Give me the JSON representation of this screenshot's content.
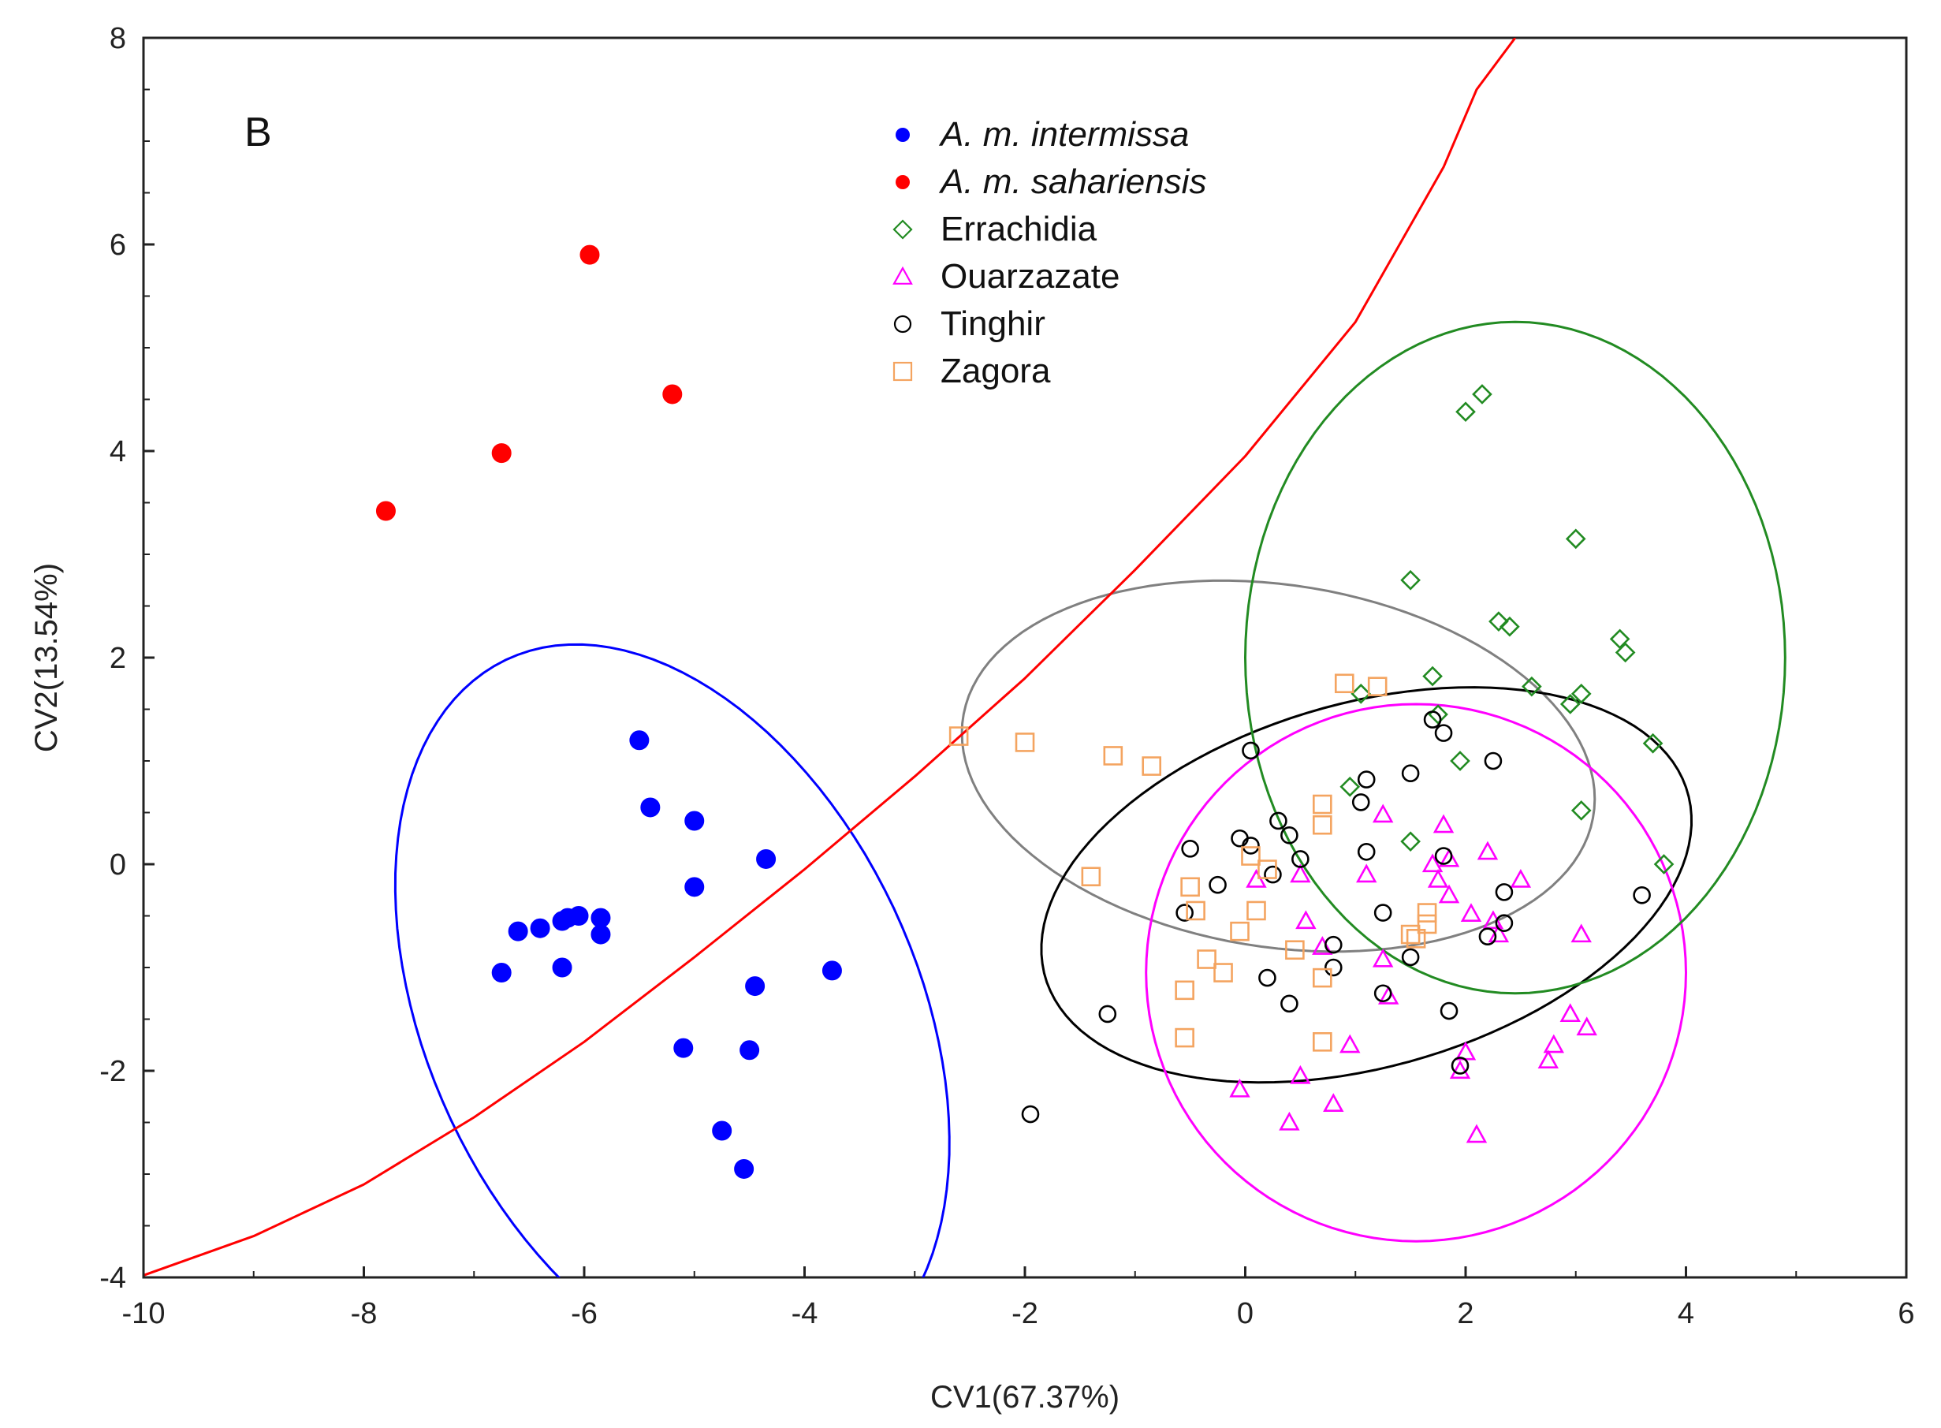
{
  "chart_data": {
    "type": "scatter",
    "panel_label": "B",
    "xlabel": "CV1(67.37%)",
    "ylabel": "CV2(13.54%)",
    "xlim": [
      -10,
      6
    ],
    "ylim": [
      -4,
      8
    ],
    "xticks": [
      -10,
      -8,
      -6,
      -4,
      -2,
      0,
      2,
      4,
      6
    ],
    "yticks": [
      -4,
      -2,
      0,
      2,
      4,
      6,
      8
    ],
    "grid": false,
    "legend_position": "top-center",
    "series": [
      {
        "name": "A. m. intermissa",
        "italic": true,
        "marker": "filled-circle",
        "color": "#0000ff",
        "points": [
          [
            -5.5,
            1.2
          ],
          [
            -5.4,
            0.55
          ],
          [
            -5.0,
            0.42
          ],
          [
            -4.35,
            0.05
          ],
          [
            -5.0,
            -0.22
          ],
          [
            -3.75,
            -1.03
          ],
          [
            -4.45,
            -1.18
          ],
          [
            -5.1,
            -1.78
          ],
          [
            -4.5,
            -1.8
          ],
          [
            -4.75,
            -2.58
          ],
          [
            -4.55,
            -2.95
          ],
          [
            -6.6,
            -0.65
          ],
          [
            -6.4,
            -0.62
          ],
          [
            -6.2,
            -0.55
          ],
          [
            -6.15,
            -0.52
          ],
          [
            -6.05,
            -0.5
          ],
          [
            -5.85,
            -0.52
          ],
          [
            -5.85,
            -0.68
          ],
          [
            -6.2,
            -1.0
          ],
          [
            -6.75,
            -1.05
          ]
        ]
      },
      {
        "name": "A. m. sahariensis",
        "italic": true,
        "marker": "filled-circle",
        "color": "#ff0000",
        "points": [
          [
            -5.95,
            5.9
          ],
          [
            -5.2,
            4.55
          ],
          [
            -6.75,
            3.98
          ],
          [
            -7.8,
            3.42
          ]
        ]
      },
      {
        "name": "Errachidia",
        "italic": false,
        "marker": "diamond",
        "color": "#228b22",
        "points": [
          [
            2.15,
            4.55
          ],
          [
            2.0,
            4.38
          ],
          [
            3.0,
            3.15
          ],
          [
            1.5,
            2.75
          ],
          [
            2.3,
            2.35
          ],
          [
            2.4,
            2.3
          ],
          [
            3.4,
            2.18
          ],
          [
            3.45,
            2.05
          ],
          [
            1.7,
            1.82
          ],
          [
            2.6,
            1.72
          ],
          [
            3.05,
            1.65
          ],
          [
            2.95,
            1.55
          ],
          [
            1.05,
            1.65
          ],
          [
            1.75,
            1.45
          ],
          [
            3.7,
            1.17
          ],
          [
            1.95,
            1.0
          ],
          [
            0.95,
            0.75
          ],
          [
            3.05,
            0.52
          ],
          [
            1.5,
            0.22
          ],
          [
            3.8,
            0.0
          ]
        ]
      },
      {
        "name": "Ouarzazate",
        "italic": false,
        "marker": "triangle",
        "color": "#ff00ff",
        "points": [
          [
            1.25,
            0.48
          ],
          [
            1.8,
            0.38
          ],
          [
            2.2,
            0.12
          ],
          [
            1.7,
            0.0
          ],
          [
            1.85,
            0.05
          ],
          [
            1.75,
            -0.15
          ],
          [
            1.1,
            -0.1
          ],
          [
            0.5,
            -0.1
          ],
          [
            0.1,
            -0.15
          ],
          [
            1.85,
            -0.3
          ],
          [
            2.5,
            -0.15
          ],
          [
            2.05,
            -0.48
          ],
          [
            2.25,
            -0.55
          ],
          [
            2.3,
            -0.68
          ],
          [
            0.55,
            -0.55
          ],
          [
            3.05,
            -0.68
          ],
          [
            0.7,
            -0.8
          ],
          [
            1.25,
            -0.92
          ],
          [
            1.3,
            -1.28
          ],
          [
            2.95,
            -1.45
          ],
          [
            3.1,
            -1.58
          ],
          [
            2.8,
            -1.75
          ],
          [
            2.75,
            -1.9
          ],
          [
            0.95,
            -1.75
          ],
          [
            2.0,
            -1.82
          ],
          [
            1.95,
            -2.0
          ],
          [
            0.5,
            -2.05
          ],
          [
            -0.05,
            -2.18
          ],
          [
            0.8,
            -2.32
          ],
          [
            0.4,
            -2.5
          ],
          [
            2.1,
            -2.62
          ]
        ]
      },
      {
        "name": "Tinghir",
        "italic": false,
        "marker": "open-circle",
        "color": "#000000",
        "points": [
          [
            1.7,
            1.4
          ],
          [
            1.8,
            1.27
          ],
          [
            0.05,
            1.1
          ],
          [
            2.25,
            1.0
          ],
          [
            1.1,
            0.82
          ],
          [
            1.5,
            0.88
          ],
          [
            1.05,
            0.6
          ],
          [
            0.3,
            0.42
          ],
          [
            0.4,
            0.28
          ],
          [
            -0.05,
            0.25
          ],
          [
            0.05,
            0.18
          ],
          [
            -0.5,
            0.15
          ],
          [
            1.1,
            0.12
          ],
          [
            0.5,
            0.05
          ],
          [
            1.8,
            0.08
          ],
          [
            0.25,
            -0.1
          ],
          [
            -0.25,
            -0.2
          ],
          [
            2.35,
            -0.27
          ],
          [
            3.6,
            -0.3
          ],
          [
            -0.55,
            -0.47
          ],
          [
            1.25,
            -0.47
          ],
          [
            2.35,
            -0.57
          ],
          [
            2.2,
            -0.7
          ],
          [
            0.8,
            -0.78
          ],
          [
            1.5,
            -0.9
          ],
          [
            0.8,
            -1.0
          ],
          [
            0.2,
            -1.1
          ],
          [
            0.4,
            -1.35
          ],
          [
            1.25,
            -1.25
          ],
          [
            -1.25,
            -1.45
          ],
          [
            1.85,
            -1.42
          ],
          [
            1.95,
            -1.95
          ],
          [
            -1.95,
            -2.42
          ]
        ]
      },
      {
        "name": "Zagora",
        "italic": false,
        "marker": "square",
        "color": "#f4a460",
        "points": [
          [
            0.9,
            1.75
          ],
          [
            1.2,
            1.72
          ],
          [
            -2.6,
            1.24
          ],
          [
            -2.0,
            1.18
          ],
          [
            -1.2,
            1.05
          ],
          [
            -0.85,
            0.95
          ],
          [
            0.7,
            0.58
          ],
          [
            0.7,
            0.38
          ],
          [
            0.05,
            0.08
          ],
          [
            0.2,
            -0.05
          ],
          [
            -1.4,
            -0.12
          ],
          [
            -0.5,
            -0.22
          ],
          [
            -0.45,
            -0.45
          ],
          [
            0.1,
            -0.45
          ],
          [
            1.65,
            -0.47
          ],
          [
            1.65,
            -0.58
          ],
          [
            -0.05,
            -0.65
          ],
          [
            1.5,
            -0.68
          ],
          [
            1.55,
            -0.72
          ],
          [
            -0.35,
            -0.92
          ],
          [
            0.45,
            -0.83
          ],
          [
            -0.2,
            -1.05
          ],
          [
            0.7,
            -1.1
          ],
          [
            -0.55,
            -1.22
          ],
          [
            -0.55,
            -1.68
          ],
          [
            0.7,
            -1.72
          ]
        ]
      }
    ],
    "ellipses": [
      {
        "group": "A. m. intermissa",
        "color": "#0000ff",
        "center": [
          -5.2,
          -1.45
        ],
        "semi_axes": [
          2.25,
          3.75
        ],
        "angle_deg": 22
      },
      {
        "group": "Gray",
        "color": "#808080",
        "center": [
          0.3,
          0.95
        ],
        "semi_axes": [
          2.9,
          1.75
        ],
        "angle_deg": -10
      },
      {
        "group": "Tinghir",
        "color": "#000000",
        "center": [
          1.1,
          -0.2
        ],
        "semi_axes": [
          3.05,
          1.75
        ],
        "angle_deg": 18
      },
      {
        "group": "Ouarzazate",
        "color": "#ff00ff",
        "center": [
          1.55,
          -1.05
        ],
        "semi_axes": [
          2.45,
          2.6
        ],
        "angle_deg": 0
      },
      {
        "group": "Errachidia",
        "color": "#228b22",
        "center": [
          2.45,
          2.0
        ],
        "semi_axes": [
          2.45,
          3.25
        ],
        "angle_deg": 0
      }
    ],
    "curve": {
      "color": "#ff0000",
      "points": [
        [
          -10,
          -3.98
        ],
        [
          -9,
          -3.6
        ],
        [
          -8,
          -3.1
        ],
        [
          -7,
          -2.45
        ],
        [
          -6,
          -1.72
        ],
        [
          -5,
          -0.9
        ],
        [
          -4,
          -0.05
        ],
        [
          -3,
          0.85
        ],
        [
          -2,
          1.8
        ],
        [
          -1,
          2.85
        ],
        [
          0,
          3.95
        ],
        [
          1,
          5.25
        ],
        [
          1.8,
          6.75
        ],
        [
          2.1,
          7.5
        ],
        [
          2.45,
          8.0
        ]
      ]
    }
  }
}
